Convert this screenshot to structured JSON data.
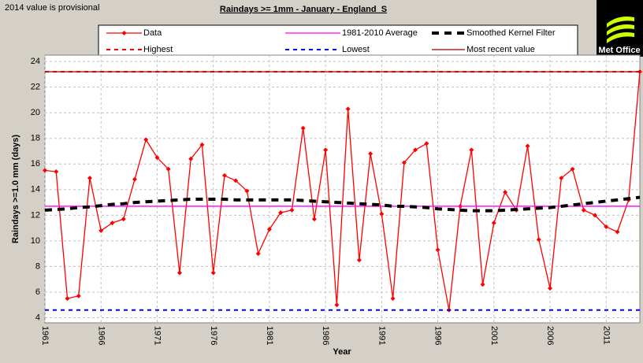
{
  "chart_data": {
    "type": "line",
    "title": "Raindays >= 1mm - January - England_S",
    "annotations": [
      "2014 value is provisional"
    ],
    "x_label": "Year",
    "y_label": "Raindays >=1.0 mm (days)",
    "x": [
      1961,
      1962,
      1963,
      1964,
      1965,
      1966,
      1967,
      1968,
      1969,
      1970,
      1971,
      1972,
      1973,
      1974,
      1975,
      1976,
      1977,
      1978,
      1979,
      1980,
      1981,
      1982,
      1983,
      1984,
      1985,
      1986,
      1987,
      1988,
      1989,
      1990,
      1991,
      1992,
      1993,
      1994,
      1995,
      1996,
      1997,
      1998,
      1999,
      2000,
      2001,
      2002,
      2003,
      2004,
      2005,
      2006,
      2007,
      2008,
      2009,
      2010,
      2011,
      2012,
      2013,
      2014
    ],
    "xlim": [
      1961,
      2014
    ],
    "xticks": [
      1961,
      1966,
      1971,
      1976,
      1981,
      1986,
      1991,
      1996,
      2001,
      2006,
      2011
    ],
    "ylim": [
      3.6,
      24.5
    ],
    "yticks": [
      4,
      6,
      8,
      10,
      12,
      14,
      16,
      18,
      20,
      22,
      24
    ],
    "grid": true,
    "series": [
      {
        "name": "Data",
        "color": "#ff0000",
        "style": "solid",
        "marker": "diamond",
        "values": [
          15.5,
          15.4,
          5.5,
          5.7,
          14.9,
          10.8,
          11.4,
          11.7,
          14.8,
          17.9,
          16.5,
          15.6,
          7.5,
          16.4,
          17.5,
          7.5,
          15.1,
          14.7,
          13.9,
          9.0,
          10.9,
          12.2,
          12.4,
          18.8,
          11.7,
          17.1,
          5.0,
          20.3,
          8.5,
          16.8,
          12.1,
          5.5,
          16.1,
          17.1,
          17.6,
          9.3,
          4.6,
          12.7,
          17.1,
          6.6,
          11.4,
          13.8,
          12.4,
          17.4,
          10.1,
          6.3,
          14.9,
          15.6,
          12.4,
          12.0,
          11.1,
          10.7,
          13.2,
          23.2
        ]
      },
      {
        "name": "1981-2010 Average",
        "color": "#ff00ff",
        "style": "solid",
        "value": 12.7
      },
      {
        "name": "Smoothed Kernel Filter",
        "color": "#000000",
        "style": "dashed",
        "values": [
          12.4,
          12.45,
          12.5,
          12.6,
          12.65,
          12.75,
          12.85,
          12.9,
          13.0,
          13.05,
          13.1,
          13.15,
          13.2,
          13.25,
          13.25,
          13.25,
          13.25,
          13.2,
          13.2,
          13.2,
          13.2,
          13.2,
          13.2,
          13.15,
          13.1,
          13.05,
          13.0,
          12.95,
          12.9,
          12.85,
          12.8,
          12.7,
          12.7,
          12.65,
          12.6,
          12.5,
          12.45,
          12.4,
          12.35,
          12.35,
          12.35,
          12.4,
          12.45,
          12.5,
          12.55,
          12.6,
          12.7,
          12.8,
          12.9,
          13.0,
          13.1,
          13.2,
          13.3,
          13.4
        ]
      },
      {
        "name": "Highest",
        "color": "#ff0000",
        "style": "dotted",
        "value": 23.2
      },
      {
        "name": "Lowest",
        "color": "#0000ff",
        "style": "dotted",
        "value": 4.6
      },
      {
        "name": "Most recent value",
        "color": "#990000",
        "style": "solid",
        "value": 23.2
      }
    ]
  },
  "logo": {
    "text": "Met Office"
  }
}
